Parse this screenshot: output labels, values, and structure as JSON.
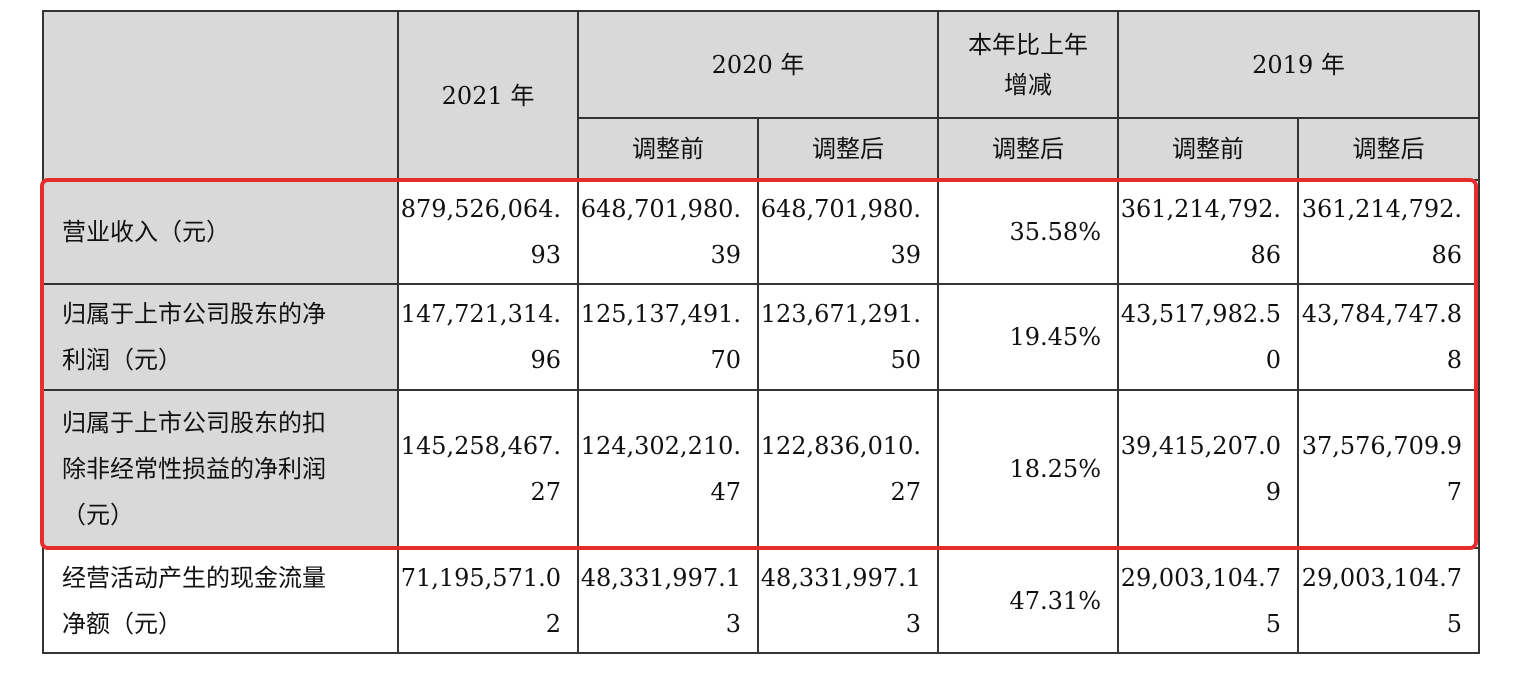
{
  "header": {
    "y2021": "2021 年",
    "y2020": "2020 年",
    "change_line1": "本年比上年",
    "change_line2": "增减",
    "y2019": "2019 年",
    "before": "调整前",
    "after": "调整后"
  },
  "rows": [
    {
      "label": [
        "营业收入（元）"
      ],
      "v2021": "879,526,064.93",
      "v2020_before": "648,701,980.39",
      "v2020_after": "648,701,980.39",
      "change": "35.58%",
      "v2019_before": "361,214,792.86",
      "v2019_after": "361,214,792.86"
    },
    {
      "label": [
        "归属于上市公司股东的净",
        "利润（元）"
      ],
      "v2021": "147,721,314.96",
      "v2020_before": "125,137,491.70",
      "v2020_after": "123,671,291.50",
      "change": "19.45%",
      "v2019_before": "43,517,982.50",
      "v2019_after": "43,784,747.88"
    },
    {
      "label": [
        "归属于上市公司股东的扣",
        "除非经常性损益的净利润",
        "（元）"
      ],
      "v2021": "145,258,467.27",
      "v2020_before": "124,302,210.47",
      "v2020_after": "122,836,010.27",
      "change": "18.25%",
      "v2019_before": "39,415,207.09",
      "v2019_after": "37,576,709.97"
    },
    {
      "label": [
        "经营活动产生的现金流量",
        "净额（元）"
      ],
      "v2021": "71,195,571.02",
      "v2020_before": "48,331,997.13",
      "v2020_after": "48,331,997.13",
      "change": "47.31%",
      "v2019_before": "29,003,104.75",
      "v2019_after": "29,003,104.75"
    }
  ]
}
